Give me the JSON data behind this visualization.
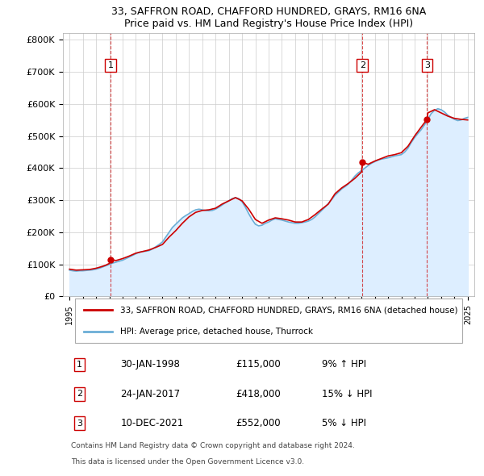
{
  "title1": "33, SAFFRON ROAD, CHAFFORD HUNDRED, GRAYS, RM16 6NA",
  "title2": "Price paid vs. HM Land Registry's House Price Index (HPI)",
  "ylabel_ticks": [
    "£0",
    "£100K",
    "£200K",
    "£300K",
    "£400K",
    "£500K",
    "£600K",
    "£700K",
    "£800K"
  ],
  "ytick_vals": [
    0,
    100000,
    200000,
    300000,
    400000,
    500000,
    600000,
    700000,
    800000
  ],
  "ylim": [
    0,
    820000
  ],
  "xlim_start": 1994.5,
  "xlim_end": 2025.5,
  "purchases": [
    {
      "date_num": 1998.08,
      "price": 115000,
      "label": "1"
    },
    {
      "date_num": 2017.07,
      "price": 418000,
      "label": "2"
    },
    {
      "date_num": 2021.94,
      "price": 552000,
      "label": "3"
    }
  ],
  "legend_line1": "33, SAFFRON ROAD, CHAFFORD HUNDRED, GRAYS, RM16 6NA (detached house)",
  "legend_line2": "HPI: Average price, detached house, Thurrock",
  "table_rows": [
    {
      "num": "1",
      "date": "30-JAN-1998",
      "price": "£115,000",
      "pct": "9% ↑ HPI"
    },
    {
      "num": "2",
      "date": "24-JAN-2017",
      "price": "£418,000",
      "pct": "15% ↓ HPI"
    },
    {
      "num": "3",
      "date": "10-DEC-2021",
      "price": "£552,000",
      "pct": "5% ↓ HPI"
    }
  ],
  "footnote1": "Contains HM Land Registry data © Crown copyright and database right 2024.",
  "footnote2": "This data is licensed under the Open Government Licence v3.0.",
  "hpi_color": "#6baed6",
  "price_color": "#cc0000",
  "bg_color": "#ddeeff",
  "plot_bg": "#ffffff",
  "grid_color": "#cccccc",
  "hpi_data": {
    "years": [
      1995,
      1995.25,
      1995.5,
      1995.75,
      1996,
      1996.25,
      1996.5,
      1996.75,
      1997,
      1997.25,
      1997.5,
      1997.75,
      1998,
      1998.25,
      1998.5,
      1998.75,
      1999,
      1999.25,
      1999.5,
      1999.75,
      2000,
      2000.25,
      2000.5,
      2000.75,
      2001,
      2001.25,
      2001.5,
      2001.75,
      2002,
      2002.25,
      2002.5,
      2002.75,
      2003,
      2003.25,
      2003.5,
      2003.75,
      2004,
      2004.25,
      2004.5,
      2004.75,
      2005,
      2005.25,
      2005.5,
      2005.75,
      2006,
      2006.25,
      2006.5,
      2006.75,
      2007,
      2007.25,
      2007.5,
      2007.75,
      2008,
      2008.25,
      2008.5,
      2008.75,
      2009,
      2009.25,
      2009.5,
      2009.75,
      2010,
      2010.25,
      2010.5,
      2010.75,
      2011,
      2011.25,
      2011.5,
      2011.75,
      2012,
      2012.25,
      2012.5,
      2012.75,
      2013,
      2013.25,
      2013.5,
      2013.75,
      2014,
      2014.25,
      2014.5,
      2014.75,
      2015,
      2015.25,
      2015.5,
      2015.75,
      2016,
      2016.25,
      2016.5,
      2016.75,
      2017,
      2017.25,
      2017.5,
      2017.75,
      2018,
      2018.25,
      2018.5,
      2018.75,
      2019,
      2019.25,
      2019.5,
      2019.75,
      2020,
      2020.25,
      2020.5,
      2020.75,
      2021,
      2021.25,
      2021.5,
      2021.75,
      2022,
      2022.25,
      2022.5,
      2022.75,
      2023,
      2023.25,
      2023.5,
      2023.75,
      2024,
      2024.25,
      2024.5,
      2024.75,
      2025
    ],
    "values": [
      82000,
      80000,
      79000,
      80000,
      80000,
      81000,
      82000,
      83000,
      85000,
      88000,
      92000,
      96000,
      100000,
      104000,
      107000,
      110000,
      113000,
      118000,
      123000,
      128000,
      133000,
      138000,
      140000,
      141000,
      143000,
      148000,
      155000,
      162000,
      170000,
      185000,
      200000,
      215000,
      225000,
      235000,
      245000,
      252000,
      258000,
      265000,
      270000,
      272000,
      270000,
      268000,
      267000,
      268000,
      272000,
      278000,
      285000,
      292000,
      298000,
      305000,
      308000,
      305000,
      295000,
      278000,
      258000,
      240000,
      225000,
      220000,
      222000,
      228000,
      232000,
      238000,
      242000,
      240000,
      238000,
      235000,
      232000,
      230000,
      228000,
      228000,
      230000,
      232000,
      235000,
      240000,
      248000,
      258000,
      268000,
      278000,
      290000,
      302000,
      315000,
      325000,
      335000,
      342000,
      350000,
      362000,
      375000,
      385000,
      392000,
      400000,
      408000,
      415000,
      420000,
      425000,
      428000,
      430000,
      432000,
      435000,
      438000,
      440000,
      442000,
      450000,
      462000,
      480000,
      495000,
      508000,
      520000,
      535000,
      552000,
      570000,
      580000,
      585000,
      582000,
      575000,
      565000,
      558000,
      552000,
      548000,
      550000,
      555000,
      558000
    ]
  },
  "price_data": {
    "years": [
      1995,
      1995.5,
      1996,
      1996.5,
      1997,
      1997.5,
      1997.75,
      1998,
      1998.08,
      1998.5,
      1999,
      1999.5,
      2000,
      2000.5,
      2001,
      2001.5,
      2002,
      2002.5,
      2003,
      2003.5,
      2004,
      2004.5,
      2005,
      2005.5,
      2006,
      2006.5,
      2007,
      2007.5,
      2008,
      2008.5,
      2009,
      2009.5,
      2010,
      2010.5,
      2011,
      2011.5,
      2012,
      2012.5,
      2013,
      2013.5,
      2014,
      2014.5,
      2015,
      2015.5,
      2016,
      2016.5,
      2017,
      2017.07,
      2017.5,
      2018,
      2018.5,
      2019,
      2019.5,
      2020,
      2020.5,
      2021,
      2021.5,
      2021.94,
      2022,
      2022.5,
      2023,
      2023.5,
      2024,
      2024.5,
      2025
    ],
    "values": [
      85000,
      82000,
      83000,
      84000,
      88000,
      94000,
      98000,
      103000,
      115000,
      112000,
      118000,
      126000,
      135000,
      140000,
      145000,
      153000,
      162000,
      185000,
      205000,
      228000,
      248000,
      262000,
      268000,
      270000,
      275000,
      288000,
      298000,
      308000,
      298000,
      272000,
      240000,
      228000,
      238000,
      245000,
      242000,
      238000,
      232000,
      232000,
      240000,
      255000,
      272000,
      288000,
      320000,
      338000,
      352000,
      368000,
      388000,
      418000,
      412000,
      422000,
      430000,
      438000,
      442000,
      448000,
      468000,
      500000,
      528000,
      552000,
      572000,
      582000,
      572000,
      562000,
      555000,
      552000,
      550000
    ]
  }
}
